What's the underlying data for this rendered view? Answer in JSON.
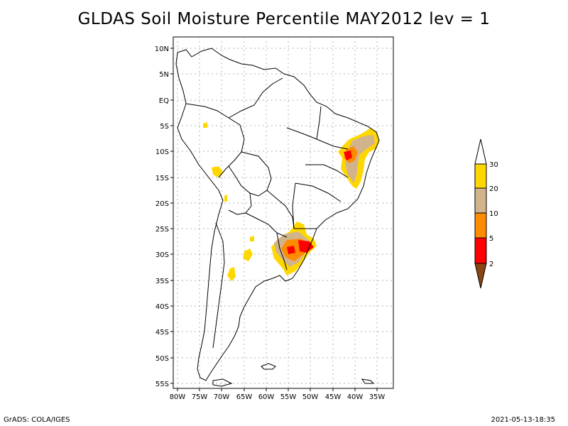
{
  "title": "GLDAS Soil Moisture Percentile MAY2012 lev = 1",
  "footer": {
    "left": "GrADS: COLA/IGES",
    "right": "2021-05-13-18:35"
  },
  "map": {
    "lat_labels": [
      "10N",
      "5N",
      "EQ",
      "5S",
      "10S",
      "15S",
      "20S",
      "25S",
      "30S",
      "35S",
      "40S",
      "45S",
      "50S",
      "55S"
    ],
    "lon_labels": [
      "80W",
      "75W",
      "70W",
      "65W",
      "60W",
      "55W",
      "50W",
      "45W",
      "40W",
      "35W"
    ],
    "lat_range": [
      -56,
      11
    ],
    "lon_range": [
      -81,
      -34
    ],
    "grid": true
  },
  "colorbar": {
    "labels": [
      "30",
      "20",
      "10",
      "5",
      "2"
    ],
    "colors": {
      "above30": "#ffffff",
      "c20_30": "#ffd700",
      "c10_20": "#d2b48c",
      "c5_10": "#ff8c00",
      "c2_5": "#ff0000",
      "below2": "#8b4513"
    }
  }
}
